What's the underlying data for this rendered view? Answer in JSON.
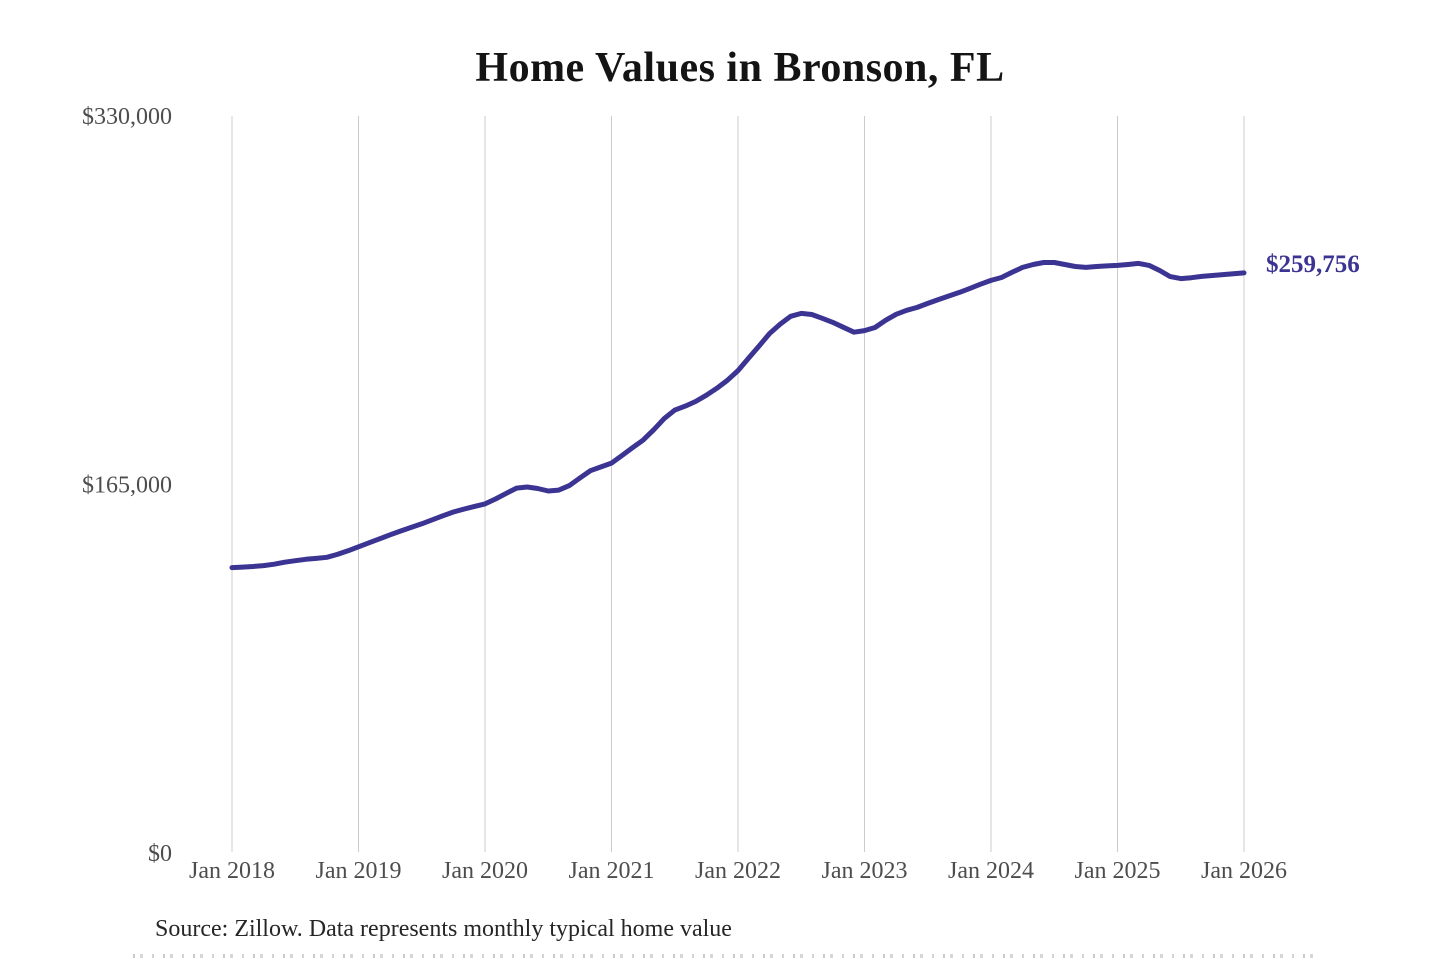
{
  "chart_data": {
    "type": "line",
    "title": "Home Values in Bronson, FL",
    "series_name": "Monthly typical home value",
    "x_start": "2018-01",
    "x_freq": "monthly",
    "x_tick_labels": [
      "Jan 2018",
      "Jan 2019",
      "Jan 2020",
      "Jan 2021",
      "Jan 2022",
      "Jan 2023",
      "Jan 2024",
      "Jan 2025",
      "Jan 2026"
    ],
    "y_ticks": [
      {
        "label": "$330,000",
        "value": 330000
      },
      {
        "label": "$165,000",
        "value": 165000
      },
      {
        "label": "$0",
        "value": 0
      }
    ],
    "ylim": [
      0,
      330000
    ],
    "grid": "vertical-only",
    "legend": "none",
    "line_color": "#3b3492",
    "gridline_color": "#cccccc",
    "tick_color": "#4d4d4d",
    "end_label": "$259,756",
    "end_value": 259756,
    "values": [
      127800,
      128000,
      128300,
      128700,
      129300,
      130200,
      130900,
      131500,
      131900,
      132400,
      133700,
      135300,
      137100,
      138900,
      140700,
      142500,
      144200,
      145800,
      147400,
      149200,
      151000,
      152700,
      154000,
      155200,
      156300,
      158500,
      161000,
      163400,
      163900,
      163200,
      162100,
      162500,
      164500,
      167900,
      171200,
      172900,
      174600,
      178000,
      181500,
      184900,
      189500,
      194500,
      198300,
      200100,
      202200,
      205000,
      208100,
      211700,
      216000,
      221500,
      227000,
      232600,
      236800,
      240300,
      241600,
      241100,
      239400,
      237600,
      235400,
      233200,
      233900,
      235300,
      238500,
      241200,
      243000,
      244300,
      246100,
      247800,
      249400,
      251000,
      252800,
      254700,
      256400,
      257700,
      260000,
      262200,
      263500,
      264400,
      264400,
      263500,
      262600,
      262200,
      262600,
      262900,
      263100,
      263500,
      264000,
      263100,
      260800,
      258100,
      257200,
      257600,
      258200,
      258600,
      259000,
      259400,
      259756
    ]
  },
  "source": {
    "text": "Source: Zillow. Data represents monthly typical home value"
  }
}
